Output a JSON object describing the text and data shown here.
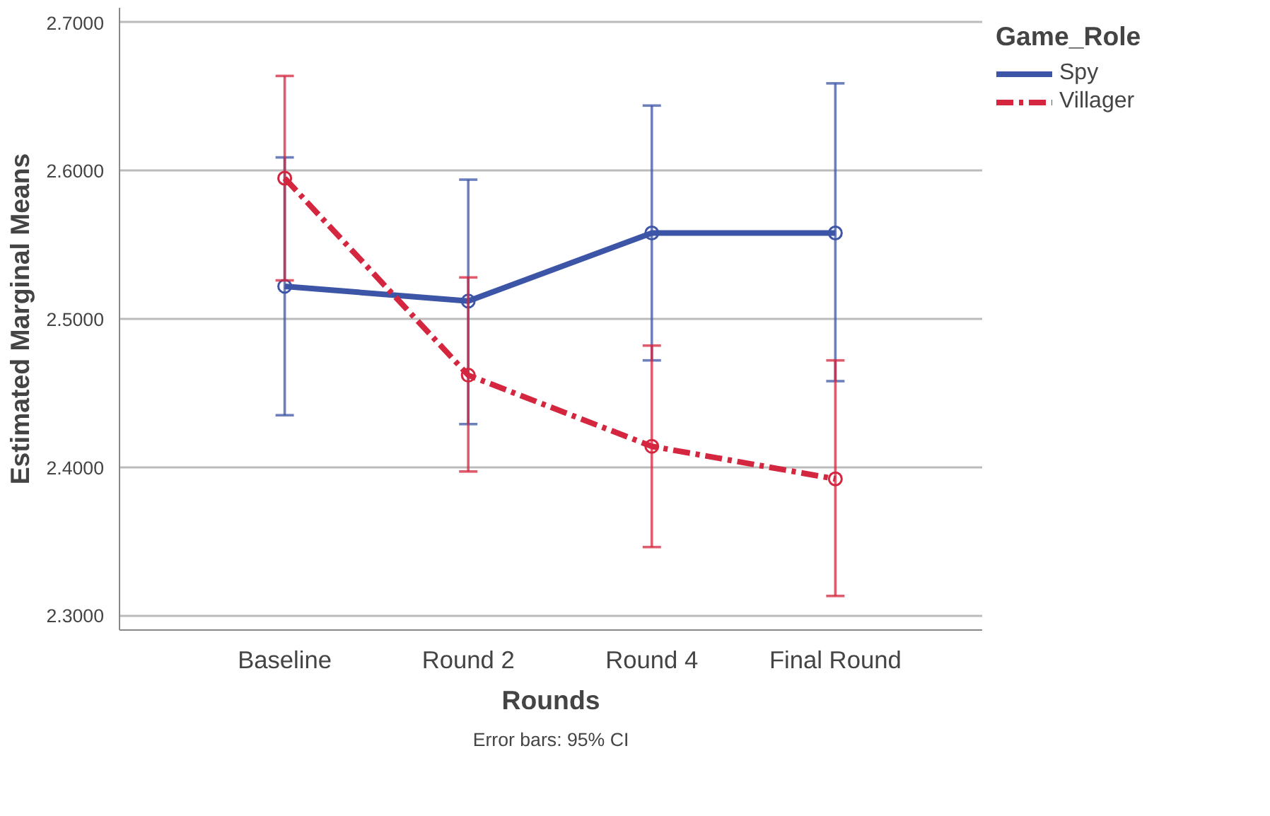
{
  "chart_data": {
    "type": "line",
    "xlabel": "Rounds",
    "ylabel": "Estimated Marginal Means",
    "legend_title": "Game_Role",
    "categories": [
      "Baseline",
      "Round 2",
      "Round 4",
      "Final Round"
    ],
    "series": [
      {
        "name": "Spy",
        "color": "#3d55a6",
        "line_style": "solid",
        "values": [
          2.522,
          2.512,
          2.558,
          2.558
        ],
        "errors": [
          [
            2.435,
            2.609
          ],
          [
            2.429,
            2.594
          ],
          [
            2.472,
            2.644
          ],
          [
            2.458,
            2.659
          ]
        ]
      },
      {
        "name": "Villager",
        "color": "#d4263e",
        "line_style": "dashed",
        "values": [
          2.595,
          2.462,
          2.414,
          2.392
        ],
        "errors": [
          [
            2.526,
            2.664
          ],
          [
            2.397,
            2.528
          ],
          [
            2.346,
            2.482
          ],
          [
            2.313,
            2.472
          ]
        ]
      }
    ],
    "ylim": [
      2.29,
      2.71
    ],
    "yticks": [
      {
        "value": 2.3,
        "label": "2.3000"
      },
      {
        "value": 2.4,
        "label": "2.4000"
      },
      {
        "value": 2.5,
        "label": "2.5000"
      },
      {
        "value": 2.6,
        "label": "2.6000"
      },
      {
        "value": 2.7,
        "label": "2.7000"
      }
    ],
    "grid": "y",
    "legend": "top right",
    "marker": "circle",
    "annotations": [
      "Error bars: 95% CI"
    ]
  }
}
